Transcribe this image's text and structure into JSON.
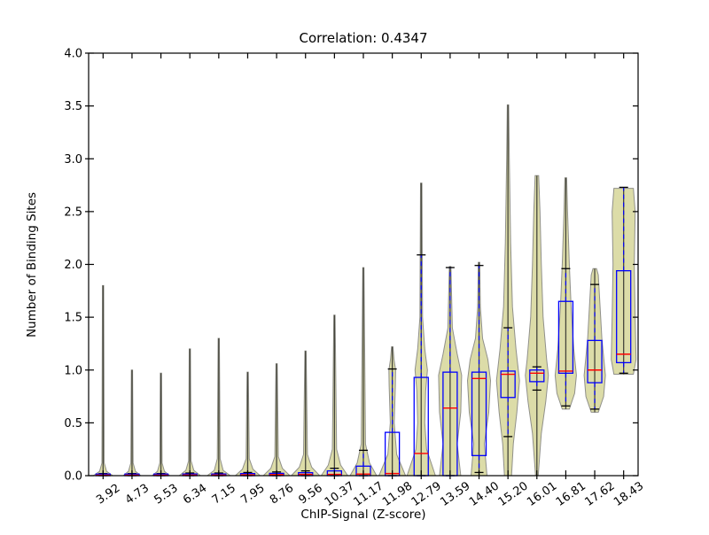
{
  "chart_data": {
    "type": "violin-box",
    "title": "Correlation: 0.4347",
    "xlabel": "ChIP-Signal (Z-score)",
    "ylabel": "Number of Binding Sites",
    "ylim": [
      0.0,
      4.0
    ],
    "yticks": [
      "0.0",
      "0.5",
      "1.0",
      "1.5",
      "2.0",
      "2.5",
      "3.0",
      "3.5",
      "4.0"
    ],
    "grid": false,
    "legend": "none",
    "colors": {
      "violin_fill": "#dcdca8",
      "violin_edge": "#90908a",
      "center_line": "#45453c",
      "box": "#0000ff",
      "median": "#ff0000",
      "whisker": "#0000ff",
      "cap": "#000000",
      "spine": "#000000",
      "background": "#ffffff"
    },
    "categories": [
      "3.92",
      "4.73",
      "5.53",
      "6.34",
      "7.15",
      "7.95",
      "8.76",
      "9.56",
      "10.37",
      "11.17",
      "11.98",
      "12.79",
      "13.59",
      "14.40",
      "15.20",
      "16.01",
      "16.81",
      "17.62",
      "18.43"
    ],
    "series": [
      {
        "label": "3.92",
        "violin_range": [
          0,
          1.8
        ],
        "violin_profile": [
          [
            0,
            11
          ],
          [
            0.04,
            4
          ],
          [
            0.12,
            1.3
          ],
          [
            1.8,
            0.7
          ]
        ],
        "box": {
          "q1": 0,
          "median": 0.005,
          "q3": 0.015,
          "whisker_low": 0,
          "whisker_high": 0.02
        }
      },
      {
        "label": "4.73",
        "violin_range": [
          0,
          1.0
        ],
        "violin_profile": [
          [
            0,
            10
          ],
          [
            0.04,
            4
          ],
          [
            0.12,
            1.3
          ],
          [
            1.0,
            0.7
          ]
        ],
        "box": {
          "q1": 0,
          "median": 0.005,
          "q3": 0.015,
          "whisker_low": 0,
          "whisker_high": 0.02
        }
      },
      {
        "label": "5.53",
        "violin_range": [
          0,
          0.97
        ],
        "violin_profile": [
          [
            0,
            10
          ],
          [
            0.04,
            4
          ],
          [
            0.12,
            1.3
          ],
          [
            0.97,
            0.7
          ]
        ],
        "box": {
          "q1": 0,
          "median": 0.005,
          "q3": 0.015,
          "whisker_low": 0,
          "whisker_high": 0.02
        }
      },
      {
        "label": "6.34",
        "violin_range": [
          0,
          1.2
        ],
        "violin_profile": [
          [
            0,
            12
          ],
          [
            0.05,
            4.5
          ],
          [
            0.14,
            1.4
          ],
          [
            1.2,
            0.7
          ]
        ],
        "box": {
          "q1": 0,
          "median": 0.006,
          "q3": 0.016,
          "whisker_low": 0,
          "whisker_high": 0.025
        }
      },
      {
        "label": "7.15",
        "violin_range": [
          0,
          1.3
        ],
        "violin_profile": [
          [
            0,
            13
          ],
          [
            0.05,
            5
          ],
          [
            0.16,
            1.6
          ],
          [
            1.3,
            0.7
          ]
        ],
        "box": {
          "q1": 0,
          "median": 0.006,
          "q3": 0.016,
          "whisker_low": 0,
          "whisker_high": 0.025
        }
      },
      {
        "label": "7.95",
        "violin_range": [
          0,
          0.98
        ],
        "violin_profile": [
          [
            0,
            14
          ],
          [
            0.06,
            6
          ],
          [
            0.16,
            1.8
          ],
          [
            0.98,
            0.7
          ]
        ],
        "box": {
          "q1": 0,
          "median": 0.008,
          "q3": 0.02,
          "whisker_low": 0,
          "whisker_high": 0.03
        }
      },
      {
        "label": "8.76",
        "violin_range": [
          0,
          1.06
        ],
        "violin_profile": [
          [
            0,
            15
          ],
          [
            0.07,
            6.5
          ],
          [
            0.18,
            2
          ],
          [
            1.06,
            0.7
          ]
        ],
        "box": {
          "q1": 0,
          "median": 0.01,
          "q3": 0.022,
          "whisker_low": 0,
          "whisker_high": 0.035
        }
      },
      {
        "label": "9.56",
        "violin_range": [
          0,
          1.18
        ],
        "violin_profile": [
          [
            0,
            16
          ],
          [
            0.08,
            7
          ],
          [
            0.2,
            2.2
          ],
          [
            1.18,
            0.7
          ]
        ],
        "box": {
          "q1": 0,
          "median": 0.012,
          "q3": 0.028,
          "whisker_low": 0,
          "whisker_high": 0.045
        }
      },
      {
        "label": "10.37",
        "violin_range": [
          0,
          1.52
        ],
        "violin_profile": [
          [
            0,
            15
          ],
          [
            0.1,
            7
          ],
          [
            0.25,
            2.4
          ],
          [
            1.52,
            0.7
          ]
        ],
        "box": {
          "q1": 0,
          "median": 0.012,
          "q3": 0.045,
          "whisker_low": 0,
          "whisker_high": 0.07
        }
      },
      {
        "label": "11.17",
        "violin_range": [
          0,
          1.97
        ],
        "violin_profile": [
          [
            0,
            15
          ],
          [
            0.12,
            7
          ],
          [
            0.3,
            2.4
          ],
          [
            1.97,
            0.7
          ]
        ],
        "box": {
          "q1": 0,
          "median": 0.015,
          "q3": 0.09,
          "whisker_low": 0,
          "whisker_high": 0.24
        }
      },
      {
        "label": "11.98",
        "violin_range": [
          0,
          1.22
        ],
        "violin_profile": [
          [
            0,
            15
          ],
          [
            0.2,
            5
          ],
          [
            0.5,
            2.2
          ],
          [
            0.85,
            3.5
          ],
          [
            1.0,
            3.8
          ],
          [
            1.1,
            2
          ],
          [
            1.22,
            0.8
          ]
        ],
        "box": {
          "q1": 0,
          "median": 0.02,
          "q3": 0.41,
          "whisker_low": 0,
          "whisker_high": 1.01
        }
      },
      {
        "label": "12.79",
        "violin_range": [
          0,
          2.77
        ],
        "violin_profile": [
          [
            0,
            16
          ],
          [
            0.25,
            6
          ],
          [
            0.5,
            4
          ],
          [
            0.8,
            5
          ],
          [
            1.0,
            7
          ],
          [
            1.2,
            4
          ],
          [
            1.5,
            1.5
          ],
          [
            2.77,
            0.8
          ]
        ],
        "box": {
          "q1": 0,
          "median": 0.21,
          "q3": 0.93,
          "whisker_low": 0,
          "whisker_high": 2.09
        }
      },
      {
        "label": "13.59",
        "violin_range": [
          0,
          1.98
        ],
        "violin_profile": [
          [
            0,
            12
          ],
          [
            0.3,
            8
          ],
          [
            0.6,
            12
          ],
          [
            0.95,
            13
          ],
          [
            1.15,
            8
          ],
          [
            1.4,
            2.5
          ],
          [
            1.98,
            0.9
          ]
        ],
        "box": {
          "q1": 0,
          "median": 0.64,
          "q3": 0.98,
          "whisker_low": 0,
          "whisker_high": 1.97
        }
      },
      {
        "label": "14.40",
        "violin_range": [
          0,
          2.02
        ],
        "violin_profile": [
          [
            0,
            9
          ],
          [
            0.3,
            6
          ],
          [
            0.6,
            11
          ],
          [
            0.9,
            13
          ],
          [
            1.1,
            10
          ],
          [
            1.3,
            4
          ],
          [
            1.6,
            1.5
          ],
          [
            2.02,
            0.8
          ]
        ],
        "box": {
          "q1": 0.19,
          "median": 0.92,
          "q3": 0.98,
          "whisker_low": 0.03,
          "whisker_high": 1.99
        }
      },
      {
        "label": "15.20",
        "violin_range": [
          0,
          3.51
        ],
        "violin_profile": [
          [
            0,
            4
          ],
          [
            0.3,
            6
          ],
          [
            0.6,
            10
          ],
          [
            0.9,
            13
          ],
          [
            1.2,
            9
          ],
          [
            1.6,
            5
          ],
          [
            2.2,
            3
          ],
          [
            3.0,
            1.5
          ],
          [
            3.51,
            0.8
          ]
        ],
        "box": {
          "q1": 0.74,
          "median": 0.96,
          "q3": 0.99,
          "whisker_low": 0.37,
          "whisker_high": 1.4
        }
      },
      {
        "label": "16.01",
        "violin_range": [
          0,
          2.84
        ],
        "violin_profile": [
          [
            0,
            1.5
          ],
          [
            0.4,
            5
          ],
          [
            0.7,
            10
          ],
          [
            0.95,
            13
          ],
          [
            1.1,
            11
          ],
          [
            1.5,
            7
          ],
          [
            2.0,
            5
          ],
          [
            2.5,
            3.5
          ],
          [
            2.84,
            2
          ]
        ],
        "box": {
          "q1": 0.89,
          "median": 0.97,
          "q3": 1.0,
          "whisker_low": 0.81,
          "whisker_high": 1.03
        }
      },
      {
        "label": "16.81",
        "violin_range": [
          0.63,
          2.82
        ],
        "violin_profile": [
          [
            0.63,
            4
          ],
          [
            0.78,
            10
          ],
          [
            0.95,
            12
          ],
          [
            1.2,
            9
          ],
          [
            1.6,
            6
          ],
          [
            2.0,
            4
          ],
          [
            2.5,
            2
          ],
          [
            2.82,
            1
          ]
        ],
        "box": {
          "q1": 0.97,
          "median": 0.99,
          "q3": 1.65,
          "whisker_low": 0.66,
          "whisker_high": 1.96
        }
      },
      {
        "label": "17.62",
        "violin_range": [
          0.6,
          1.96
        ],
        "violin_profile": [
          [
            0.6,
            4
          ],
          [
            0.75,
            10
          ],
          [
            0.95,
            12
          ],
          [
            1.3,
            8
          ],
          [
            1.6,
            6
          ],
          [
            1.9,
            4
          ],
          [
            1.96,
            2
          ]
        ],
        "box": {
          "q1": 0.88,
          "median": 1.0,
          "q3": 1.28,
          "whisker_low": 0.63,
          "whisker_high": 1.81
        }
      },
      {
        "label": "18.43",
        "violin_range": [
          0.96,
          2.72
        ],
        "violin_profile": [
          [
            0.96,
            11
          ],
          [
            1.1,
            14
          ],
          [
            1.5,
            13
          ],
          [
            2.0,
            12
          ],
          [
            2.5,
            13
          ],
          [
            2.72,
            11
          ]
        ],
        "box": {
          "q1": 1.07,
          "median": 1.15,
          "q3": 1.94,
          "whisker_low": 0.97,
          "whisker_high": 2.73
        }
      }
    ]
  }
}
